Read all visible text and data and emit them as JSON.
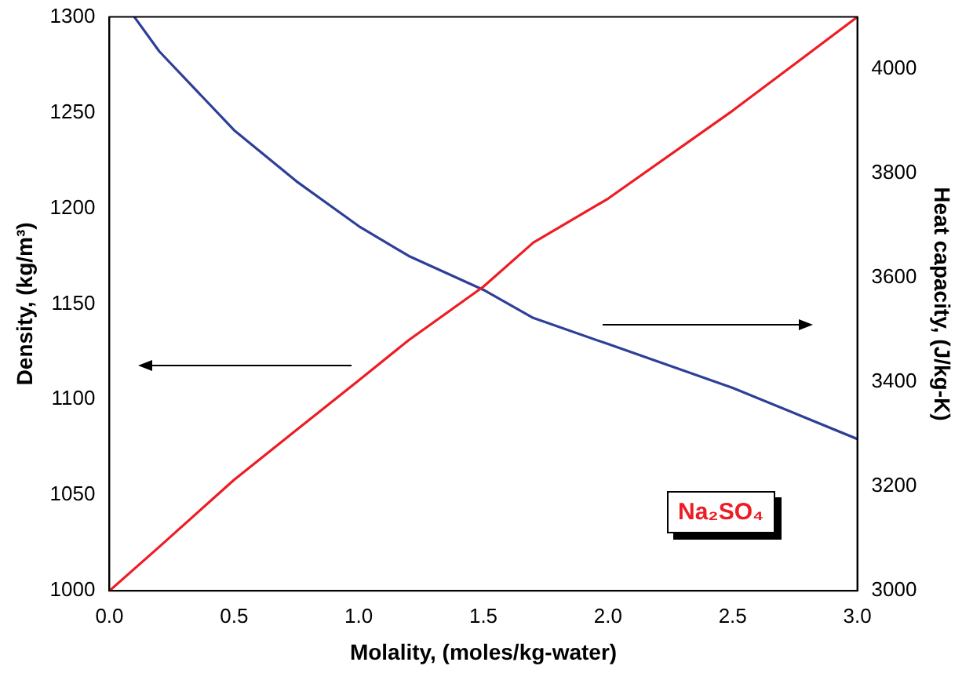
{
  "chart_data": {
    "type": "line",
    "xlabel": "Molality, (moles/kg-water)",
    "ylabel": "Density, (kg/m³)",
    "y2label": "Heat capacity, (J/kg-K)",
    "xlim": [
      0,
      3
    ],
    "xticks": [
      {
        "value": 0,
        "label": "0.0"
      },
      0.5,
      {
        "value": 1,
        "label": "1.0"
      },
      1.5,
      {
        "value": 2,
        "label": "2.0"
      },
      2.5,
      {
        "value": 3,
        "label": "3.0"
      }
    ],
    "ylim": [
      1000,
      1300
    ],
    "yticks": [
      1000,
      1050,
      1100,
      1150,
      1200,
      1250,
      1300
    ],
    "y2lim": [
      3000,
      4100
    ],
    "y2ticks": [
      3000,
      3200,
      3400,
      3600,
      3800,
      4000
    ],
    "series": [
      {
        "color": "#ee1c24",
        "x": [
          0,
          0.2,
          0.5,
          0.75,
          1.0,
          1.2,
          1.5,
          1.7,
          2.0,
          2.5,
          3.0
        ],
        "values": [
          1000,
          1023,
          1058,
          1084,
          1110,
          1131,
          1159,
          1182,
          1205,
          1251,
          1300
        ]
      },
      {
        "color": "#2e3f98",
        "axis": "y2",
        "x": [
          0.1,
          0.2,
          0.5,
          0.75,
          1.0,
          1.2,
          1.5,
          1.7,
          2.0,
          2.5,
          3.0
        ],
        "values": [
          4100,
          4034,
          3883,
          3785,
          3699,
          3642,
          3577,
          3523,
          3473,
          3389,
          3291
        ]
      }
    ],
    "annotations": [
      "Na₂SO₄"
    ],
    "grid": false,
    "legend": false,
    "marker": "none",
    "line_style": "solid"
  }
}
